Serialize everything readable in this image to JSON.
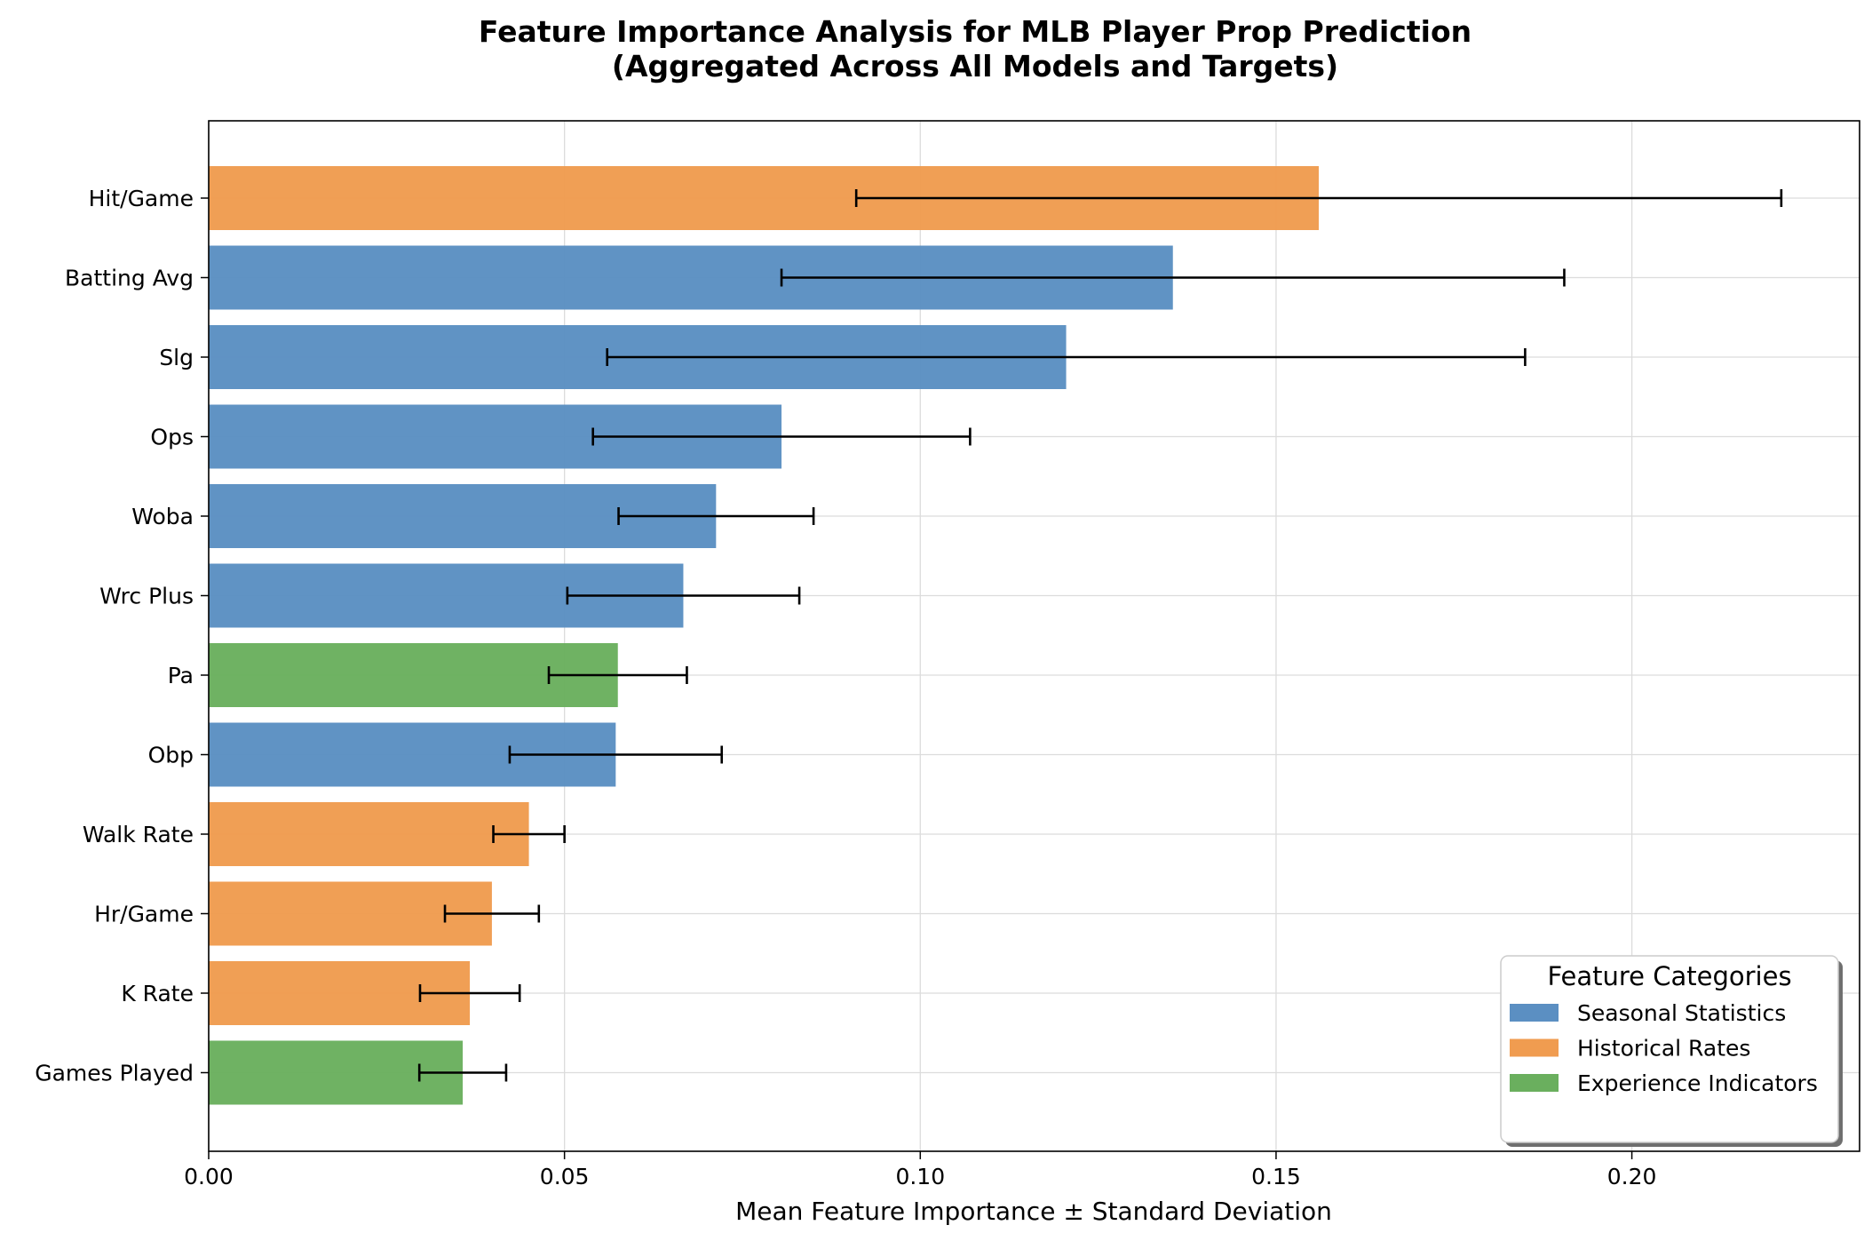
{
  "chart_data": {
    "type": "bar",
    "orientation": "horizontal",
    "title": "Feature Importance Analysis for MLB Player Prop Prediction",
    "subtitle": "(Aggregated Across All Models and Targets)",
    "xlabel": "Mean Feature Importance ± Standard Deviation",
    "ylabel": "",
    "xlim": [
      0,
      0.232
    ],
    "xticks": [
      0.0,
      0.05,
      0.1,
      0.15,
      0.2
    ],
    "xtick_labels": [
      "0.00",
      "0.05",
      "0.10",
      "0.15",
      "0.20"
    ],
    "grid": true,
    "colors": {
      "Seasonal Statistics": "#5b8fc2",
      "Historical Rates": "#f09c50",
      "Experience Indicators": "#6aaf5e"
    },
    "legend": {
      "title": "Feature Categories",
      "placement": "lower-right",
      "entries": [
        "Seasonal Statistics",
        "Historical Rates",
        "Experience Indicators"
      ]
    },
    "bars": [
      {
        "label": "Hit/Game",
        "value": 0.156,
        "std": 0.065,
        "category": "Historical Rates"
      },
      {
        "label": "Batting Avg",
        "value": 0.1355,
        "std": 0.055,
        "category": "Seasonal Statistics"
      },
      {
        "label": "Slg",
        "value": 0.1205,
        "std": 0.0645,
        "category": "Seasonal Statistics"
      },
      {
        "label": "Ops",
        "value": 0.0805,
        "std": 0.0265,
        "category": "Seasonal Statistics"
      },
      {
        "label": "Woba",
        "value": 0.0713,
        "std": 0.0137,
        "category": "Seasonal Statistics"
      },
      {
        "label": "Wrc Plus",
        "value": 0.0667,
        "std": 0.0163,
        "category": "Seasonal Statistics"
      },
      {
        "label": "Pa",
        "value": 0.0575,
        "std": 0.0097,
        "category": "Experience Indicators"
      },
      {
        "label": "Obp",
        "value": 0.0572,
        "std": 0.0149,
        "category": "Seasonal Statistics"
      },
      {
        "label": "Walk Rate",
        "value": 0.045,
        "std": 0.005,
        "category": "Historical Rates"
      },
      {
        "label": "Hr/Game",
        "value": 0.0398,
        "std": 0.0066,
        "category": "Historical Rates"
      },
      {
        "label": "K Rate",
        "value": 0.0367,
        "std": 0.007,
        "category": "Historical Rates"
      },
      {
        "label": "Games Played",
        "value": 0.0357,
        "std": 0.0061,
        "category": "Experience Indicators"
      }
    ]
  }
}
